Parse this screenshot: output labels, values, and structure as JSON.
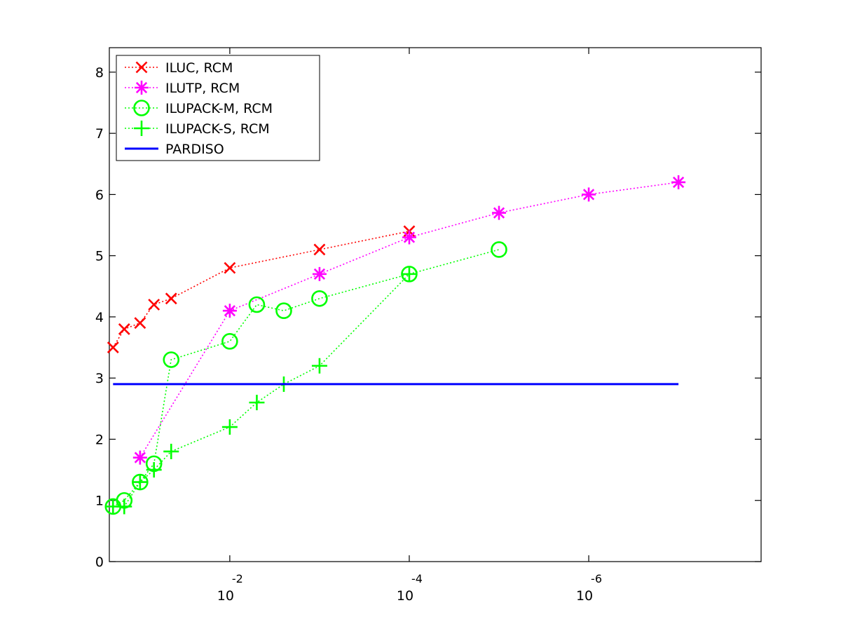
{
  "chart_data": {
    "type": "line",
    "x_scale": "log",
    "x_reversed": true,
    "xlim": [
      0.22,
      1.2e-08
    ],
    "ylim": [
      0,
      8.4
    ],
    "grid": false,
    "legend_position": "top-left",
    "x_ticks": [
      {
        "value": 0.01,
        "base": "10",
        "exponent": "-2"
      },
      {
        "value": 0.0001,
        "base": "10",
        "exponent": "-4"
      },
      {
        "value": 1e-06,
        "base": "10",
        "exponent": "-6"
      }
    ],
    "y_ticks": [
      "0",
      "1",
      "2",
      "3",
      "4",
      "5",
      "6",
      "7",
      "8"
    ],
    "series": [
      {
        "name": "ILUC, RCM",
        "color": "#ff0000",
        "marker": "x",
        "line_style": "dotted",
        "x": [
          0.2,
          0.15,
          0.1,
          0.07,
          0.045,
          0.01,
          0.001,
          0.0001
        ],
        "y": [
          3.5,
          3.8,
          3.9,
          4.2,
          4.3,
          4.8,
          5.1,
          5.4
        ]
      },
      {
        "name": "ILUTP, RCM",
        "color": "#ff00ff",
        "marker": "asterisk",
        "line_style": "dotted",
        "x": [
          0.1,
          0.01,
          0.001,
          0.0001,
          1e-05,
          1e-06,
          1e-07
        ],
        "y": [
          1.7,
          4.1,
          4.7,
          5.3,
          5.7,
          6.0,
          6.2
        ]
      },
      {
        "name": "ILUPACK-M, RCM",
        "color": "#00ff00",
        "marker": "circle",
        "line_style": "dotted",
        "x": [
          0.2,
          0.15,
          0.1,
          0.07,
          0.045,
          0.01,
          0.005,
          0.0025,
          0.001,
          0.0001,
          1e-05
        ],
        "y": [
          0.9,
          1.0,
          1.3,
          1.6,
          3.3,
          3.6,
          4.2,
          4.1,
          4.3,
          4.7,
          5.1
        ]
      },
      {
        "name": "ILUPACK-S, RCM",
        "color": "#00ff00",
        "marker": "plus",
        "line_style": "dotted",
        "x": [
          0.2,
          0.15,
          0.1,
          0.07,
          0.045,
          0.01,
          0.005,
          0.0025,
          0.001,
          0.0001
        ],
        "y": [
          0.9,
          0.9,
          1.3,
          1.5,
          1.8,
          2.2,
          2.6,
          2.9,
          3.2,
          4.7
        ]
      },
      {
        "name": "PARDISO",
        "color": "#0000ff",
        "marker": "none",
        "line_style": "solid",
        "x": [
          0.2,
          1e-07
        ],
        "y": [
          2.9,
          2.9
        ]
      }
    ]
  }
}
